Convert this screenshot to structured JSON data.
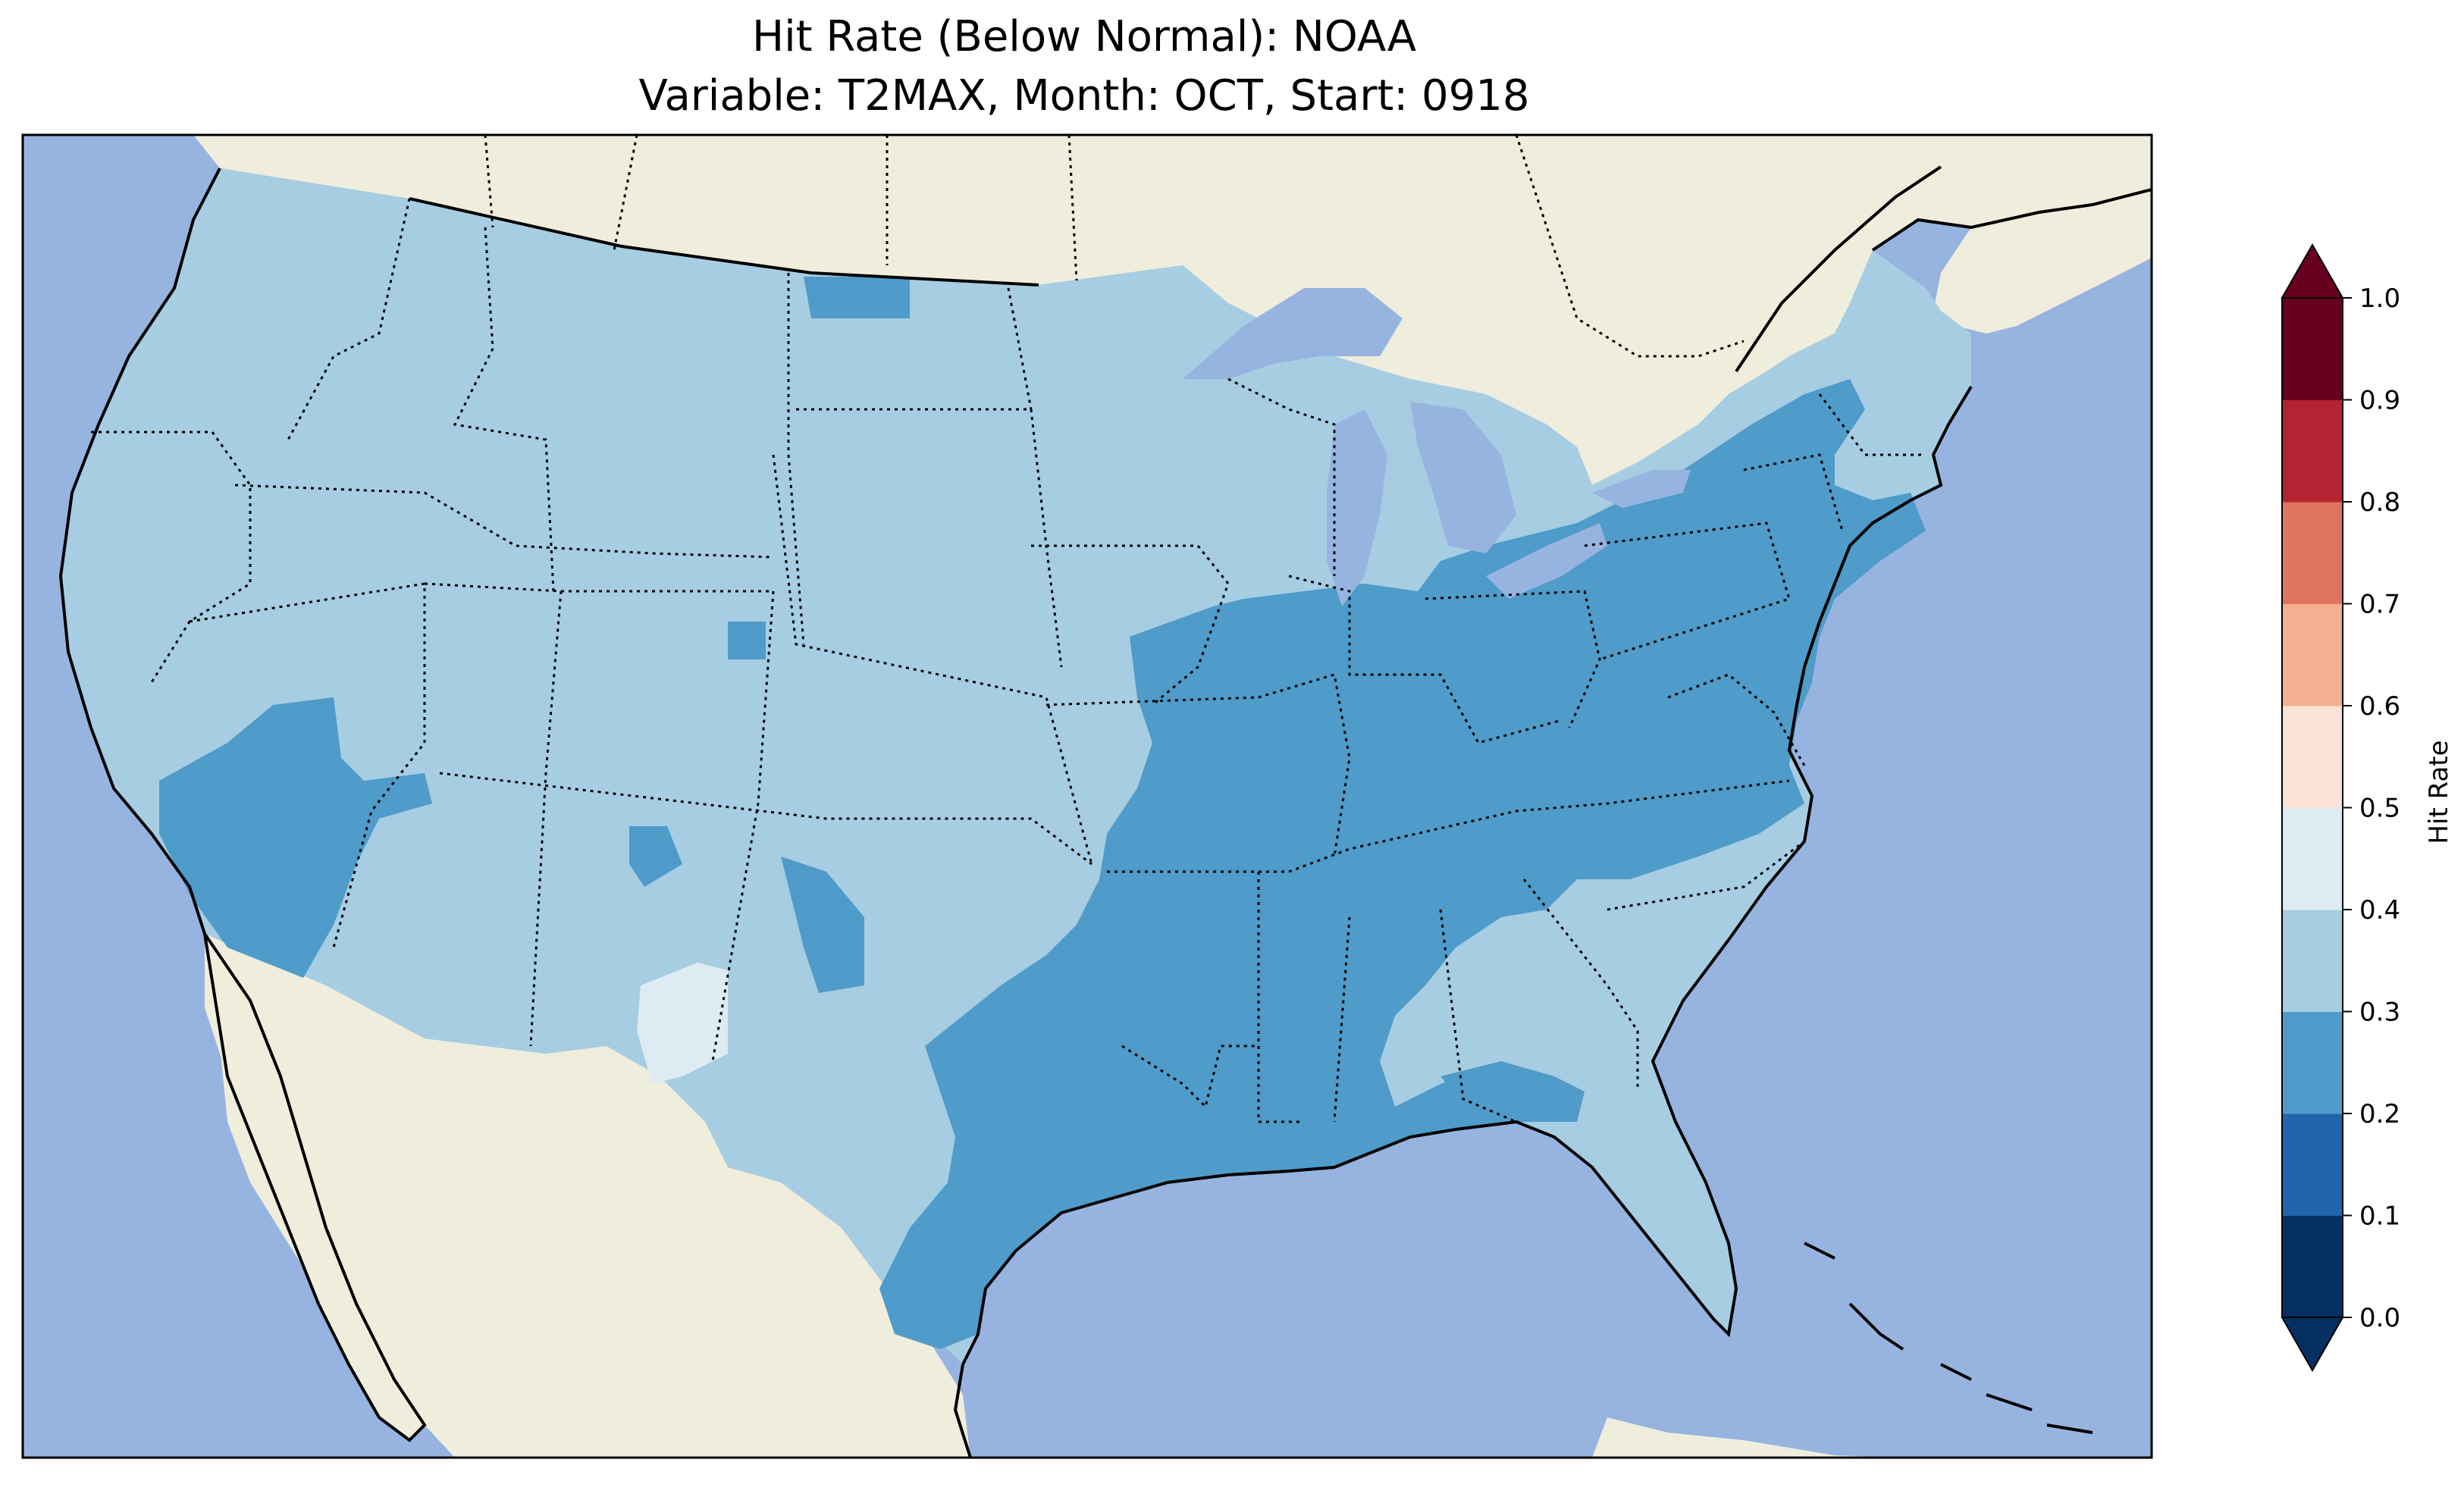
{
  "title_line1": "Hit Rate (Below Normal): NOAA",
  "title_line2": "Variable: T2MAX, Month: OCT, Start: 0918",
  "colors": {
    "ocean": "#97b4e0",
    "land": "#efeddc",
    "c_0_1": "#053061",
    "c_1_2": "#2166ac",
    "c_2_3": "#4f9bc9",
    "c_3_4": "#a7cde2",
    "c_4_5": "#deebf2",
    "c_5_6": "#f9e3d6",
    "c_6_7": "#f4b090",
    "c_7_8": "#df7560",
    "c_8_9": "#b42332",
    "c_9_10": "#67001f",
    "under": "#053061",
    "over": "#67001f"
  },
  "colorbar": {
    "label": "Hit Rate",
    "ticks": [
      "0.0",
      "0.1",
      "0.2",
      "0.3",
      "0.4",
      "0.5",
      "0.6",
      "0.7",
      "0.8",
      "0.9",
      "1.0"
    ],
    "bounds": [
      0.0,
      0.1,
      0.2,
      0.3,
      0.4,
      0.5,
      0.6,
      0.7,
      0.8,
      0.9,
      1.0
    ],
    "colors": [
      "#053061",
      "#2166ac",
      "#4f9bc9",
      "#a7cde2",
      "#deebf2",
      "#f9e3d6",
      "#f4b090",
      "#df7560",
      "#b42332",
      "#67001f"
    ],
    "extend": "both"
  },
  "map": {
    "region": "Contiguous United States",
    "field_bins_present": [
      "0.2-0.3",
      "0.3-0.4",
      "0.4-0.5"
    ]
  }
}
